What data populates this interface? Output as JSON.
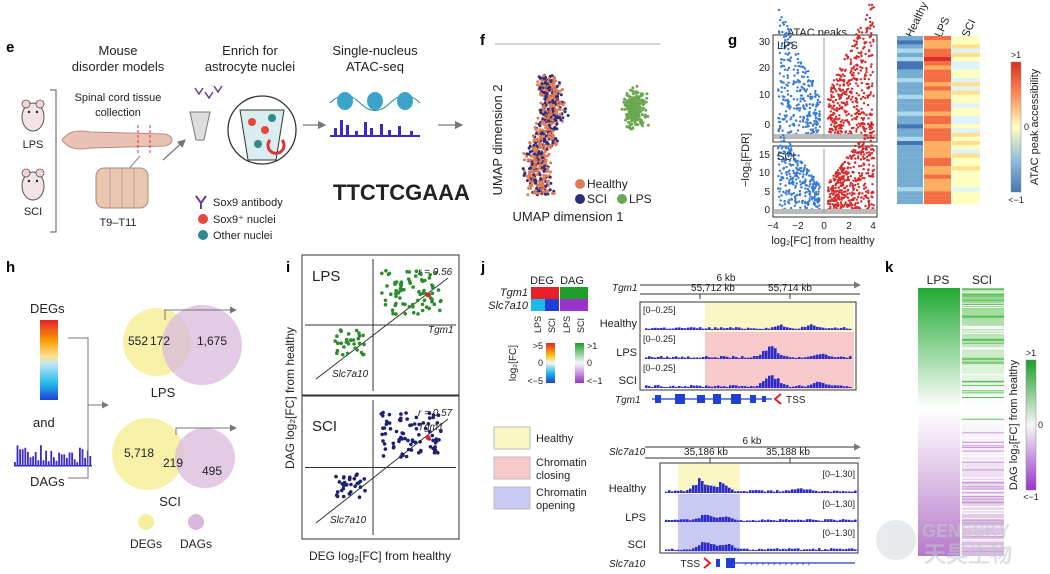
{
  "panels": {
    "e": "e",
    "f": "f",
    "g": "g",
    "h": "h",
    "i": "i",
    "j": "j",
    "k": "k"
  },
  "e": {
    "models_title_1": "Mouse",
    "models_title_2": "disorder models",
    "enrich_title_1": "Enrich for",
    "enrich_title_2": "astrocyte nuclei",
    "atac_title_1": "Single-nucleus",
    "atac_title_2": "ATAC-seq",
    "collection_1": "Spinal cord tissue",
    "collection_2": "collection",
    "mouse_lps": "LPS",
    "mouse_sci": "SCI",
    "segment": "T9–T11",
    "legend_antibody": "Sox9 antibody",
    "legend_sox9": "Sox9⁺ nuclei",
    "legend_other": "Other nuclei",
    "motif": "TTCTCGAAA",
    "colors": {
      "antibody": "#6a3d9a",
      "sox9": "#e8453c",
      "other": "#2a8c8c"
    }
  },
  "f": {
    "ylabel": "UMAP dimension 2",
    "xlabel": "UMAP dimension 1",
    "legend": [
      {
        "label": "Healthy",
        "color": "#e07a55"
      },
      {
        "label": "SCI",
        "color": "#2b2f7a"
      },
      {
        "label": "LPS",
        "color": "#6aa84f"
      }
    ]
  },
  "g": {
    "title": "ATAC peaks",
    "ylabel": "−log₂[FDR]",
    "xlabel": "log₂[FC] from healthy",
    "lps_label": "LPS",
    "sci_label": "SCI",
    "lps_yticks": [
      "30",
      "20",
      "10",
      "0"
    ],
    "sci_yticks": [
      "15",
      "10",
      "5",
      "0"
    ],
    "xticks": [
      "−4",
      "−2",
      "0",
      "2",
      "4"
    ],
    "heat_cols": [
      "Healthy",
      "LPS",
      "SCI"
    ],
    "colorbar_label": "ATAC peak accessibility",
    "cb_max": ">1",
    "cb_mid": "0",
    "cb_min": "<−1",
    "colors": {
      "down": "#3a7bd5",
      "up": "#d42a2a"
    }
  },
  "h": {
    "degs": "DEGs",
    "and": "and",
    "dags": "DAGs",
    "lps": {
      "left": "552",
      "center": "172",
      "right": "1,675",
      "label": "LPS"
    },
    "sci": {
      "left": "5,718",
      "center": "219",
      "right": "495",
      "label": "SCI"
    },
    "legend_degs": "DEGs",
    "legend_dags": "DAGs",
    "colors": {
      "degs": "#f5ef9c",
      "dags": "#d9b8dc"
    }
  },
  "i": {
    "ylabel": "DAG log₂[FC] from healthy",
    "xlabel": "DEG log₂[FC] from healthy",
    "lps": {
      "label": "LPS",
      "r": "r = 0.56",
      "gene_up": "Tgm1",
      "gene_down": "Slc7a10",
      "yticks": [
        "2.0",
        "1.5",
        "1.0",
        "0.5",
        "−0.5",
        "−1.0"
      ],
      "xticks": [
        "−12",
        "−8",
        "−4",
        "4",
        "8",
        "12"
      ]
    },
    "sci": {
      "label": "SCI",
      "r": "r = 0.57",
      "gene_up": "Tgm1",
      "gene_down": "Slc7a10",
      "yticks": [
        "1.0",
        "0.5",
        "−0.5",
        "−1.0",
        "−1.5"
      ],
      "xticks": [
        "−12",
        "−8",
        "−4",
        "4",
        "8",
        "12"
      ]
    },
    "colors": {
      "lps": "#2e8b2e",
      "sci": "#1d2170"
    }
  },
  "j": {
    "deg": "DEG",
    "dag": "DAG",
    "gene1": "Tgm1",
    "gene2": "Slc7a10",
    "col_labels": [
      "LPS",
      "SCI",
      "LPS",
      "SCI"
    ],
    "log_label": "log₂[FC]",
    "deg_max": ">5",
    "deg_min": "<−5",
    "dag_max": ">1",
    "dag_min": "<−1",
    "zero": "0",
    "legend": [
      {
        "label": "Healthy",
        "color": "#fbf7c4"
      },
      {
        "label": "Chromatin closing",
        "color": "#f8c9cb"
      },
      {
        "label": "Chromatin opening",
        "color": "#c9c9f3"
      }
    ],
    "top": {
      "gene": "Tgm1",
      "span": "6 kb",
      "coord1": "55,712 kb",
      "coord2": "55,714 kb",
      "tracks": [
        "Healthy",
        "LPS",
        "SCI"
      ],
      "range": "[0–0.25]",
      "tss": "TSS"
    },
    "bottom": {
      "gene": "Slc7a10",
      "span": "6 kb",
      "coord1": "35,186 kb",
      "coord2": "35,188 kb",
      "tracks": [
        "Healthy",
        "LPS",
        "SCI"
      ],
      "range": "[0–1.30]",
      "tss": "TSS"
    }
  },
  "k": {
    "cols": [
      "LPS",
      "SCI"
    ],
    "label": "DAG log₂[FC] from healthy",
    "max": ">1",
    "mid": "0",
    "min": "<−1"
  },
  "watermark": {
    "en": "GENESKY",
    "cn": "天昊生物"
  }
}
